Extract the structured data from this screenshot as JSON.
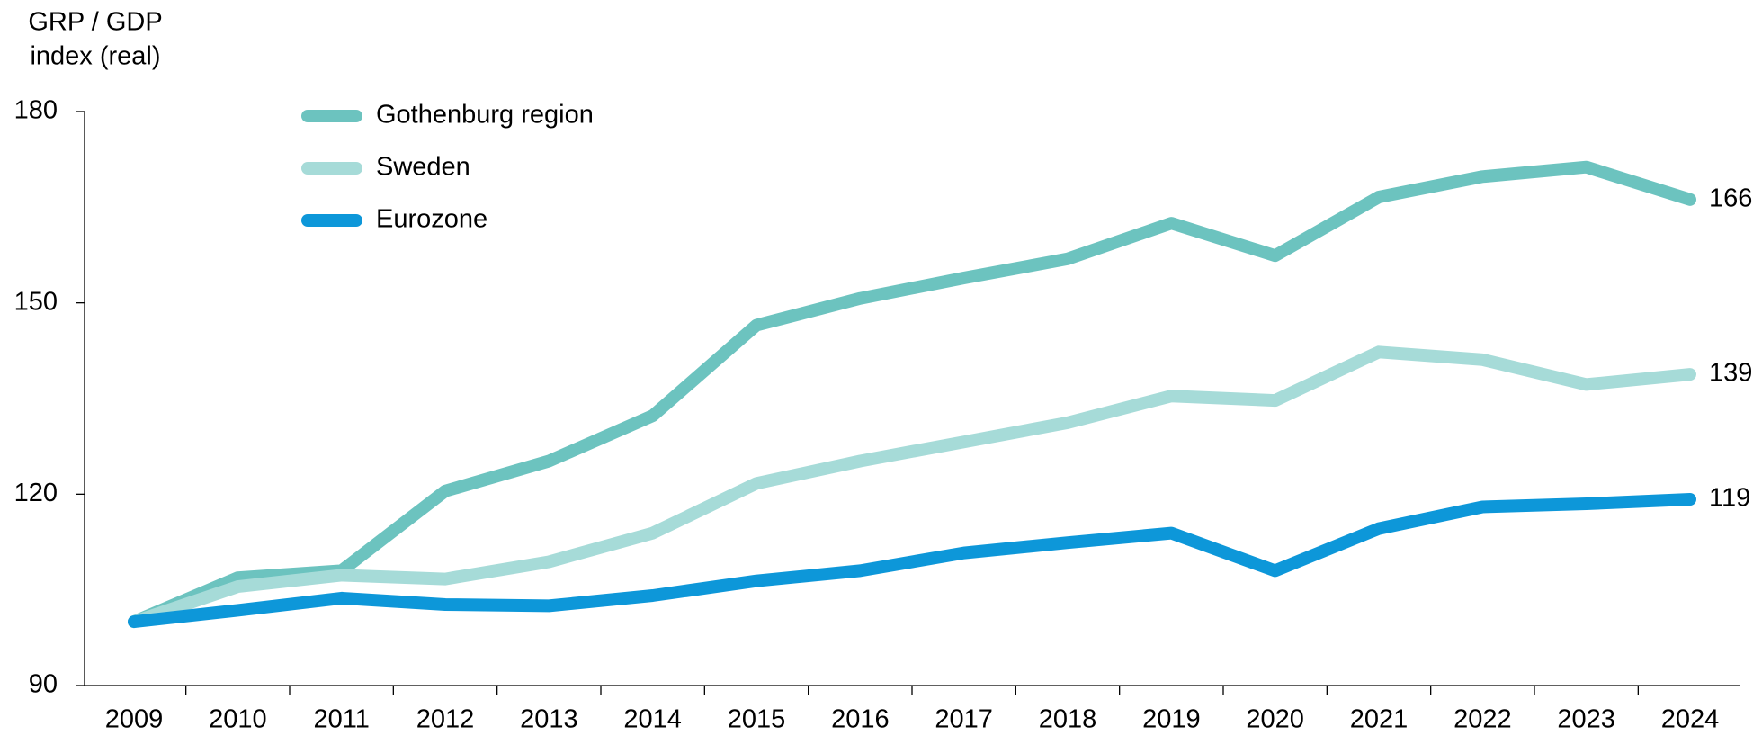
{
  "chart_data": {
    "type": "line",
    "ylabel": [
      "GRP / GDP",
      "index (real)"
    ],
    "categories": [
      "2009",
      "2010",
      "2011",
      "2012",
      "2013",
      "2014",
      "2015",
      "2016",
      "2017",
      "2018",
      "2019",
      "2020",
      "2021",
      "2022",
      "2023",
      "2024"
    ],
    "series": [
      {
        "name": "Gothenburg region",
        "color": "#6cc3bf",
        "values": [
          100,
          106.9,
          108,
          120.5,
          125.2,
          132.3,
          146.5,
          150.7,
          153.9,
          156.9,
          162.5,
          157.4,
          166.6,
          169.8,
          171.3,
          166.2
        ],
        "value_labels": [
          null,
          null,
          null,
          null,
          null,
          null,
          null,
          null,
          null,
          null,
          null,
          null,
          null,
          null,
          null,
          "166"
        ]
      },
      {
        "name": "Sweden",
        "color": "#a6dbd8",
        "values": [
          100,
          105.5,
          107.3,
          106.7,
          109.4,
          113.9,
          121.7,
          125.2,
          128.2,
          131.2,
          135.4,
          134.7,
          142.3,
          141.1,
          137.2,
          138.8
        ],
        "value_labels": [
          null,
          null,
          null,
          null,
          null,
          null,
          null,
          null,
          null,
          null,
          null,
          null,
          null,
          null,
          null,
          "139"
        ]
      },
      {
        "name": "Eurozone",
        "color": "#0d97d9",
        "values": [
          100,
          101.8,
          103.7,
          102.7,
          102.5,
          104.1,
          106.4,
          108,
          110.8,
          112.4,
          113.9,
          108,
          114.6,
          118,
          118.5,
          119.2
        ],
        "value_labels": [
          null,
          null,
          null,
          null,
          null,
          null,
          null,
          null,
          null,
          null,
          null,
          null,
          null,
          null,
          null,
          "119"
        ]
      }
    ],
    "ylim": [
      90,
      180
    ],
    "yticks": [
      90,
      120,
      150,
      180
    ],
    "grid": false,
    "legend": "top-left"
  }
}
